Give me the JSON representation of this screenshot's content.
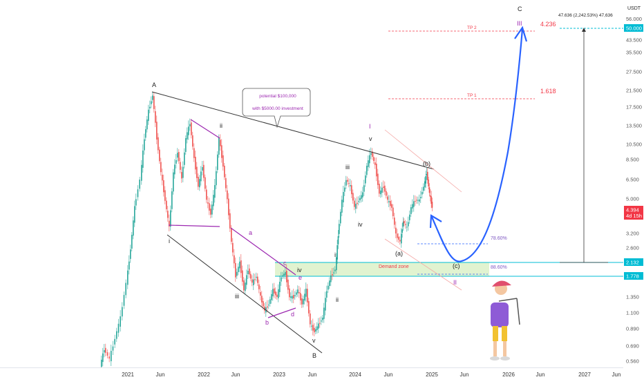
{
  "chart_data": {
    "type": "candlestick",
    "currency": "USDT",
    "price_axis": {
      "ticks": [
        "56.000",
        "50.000",
        "43.500",
        "35.500",
        "27.500",
        "21.500",
        "17.500",
        "13.500",
        "10.500",
        "8.500",
        "6.500",
        "5.000",
        "4.394",
        "3.200",
        "2.600",
        "2.132",
        "1.778",
        "1.350",
        "1.100",
        "0.890",
        "0.690",
        "0.560"
      ],
      "current_price": "4.394",
      "countdown": "4d 15h",
      "marked_levels": [
        "50.000",
        "2.132",
        "1.778"
      ]
    },
    "time_axis": {
      "ticks": [
        "2021",
        "Jun",
        "2022",
        "Jun",
        "2023",
        "Jun",
        "2024",
        "Jun",
        "2025",
        "Jun",
        "2026",
        "Jun",
        "2027",
        "Jun"
      ]
    },
    "annotations": {
      "callout_line1": "potential $100,000",
      "callout_line2": "with $5000.00 investment",
      "measure_label": "47.636 (2,242.53%) 47,636",
      "tp1": "TP 1",
      "tp2": "TP 2",
      "fib_1618": "1.618",
      "fib_4236": "4.236",
      "fib_786": "78.60%",
      "fib_886": "88.60%",
      "demand_zone": "Demand zone"
    },
    "wave_labels": {
      "A": "A",
      "B": "B",
      "C": "C",
      "i": "i",
      "ii": "ii",
      "iii": "iii",
      "iv": "iv",
      "v": "v",
      "a": "a",
      "b": "b",
      "c": "c",
      "d": "d",
      "e": "e",
      "I": "I",
      "II": "II",
      "III": "III",
      "wa": "(a)",
      "wb": "(b)",
      "wc": "(c)"
    },
    "colors": {
      "up": "#26a69a",
      "down": "#ef5350",
      "projection": "#2962ff",
      "wave_purple": "#9c27b0",
      "fib_red": "#f23645",
      "demand_zone": "#d9f0c4",
      "level_line": "#00bcd4",
      "axis_marker": "#00bcd4",
      "price_marker": "#f23645"
    }
  }
}
